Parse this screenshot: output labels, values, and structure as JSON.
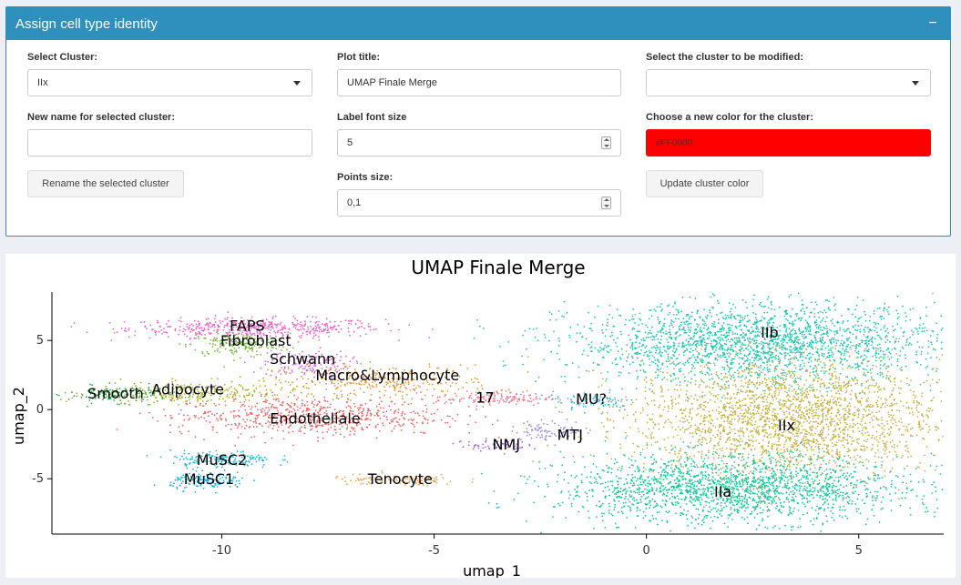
{
  "panel": {
    "title": "Assign cell type identity",
    "collapse_symbol": "−"
  },
  "form": {
    "select_cluster": {
      "label": "Select Cluster:",
      "value": "IIx"
    },
    "new_name": {
      "label": "New name for selected cluster:",
      "value": ""
    },
    "rename_button": "Rename the selected cluster",
    "plot_title": {
      "label": "Plot title:",
      "value": "UMAP Finale Merge"
    },
    "label_font_size": {
      "label": "Label font size",
      "value": "5"
    },
    "points_size": {
      "label": "Points size:",
      "value": "0,1"
    },
    "cluster_to_modify": {
      "label": "Select the cluster to be modified:",
      "value": ""
    },
    "new_color": {
      "label": "Choose a new color for the cluster:",
      "value": "#FF0000"
    },
    "update_color_button": "Update cluster color"
  },
  "chart_data": {
    "type": "scatter",
    "title": "UMAP Finale Merge",
    "xlabel": "umap_1",
    "ylabel": "umap_2",
    "xlim": [
      -14,
      7
    ],
    "ylim": [
      -9,
      8.5
    ],
    "xticks": [
      -10,
      -5,
      0,
      5
    ],
    "yticks": [
      -5,
      0,
      5
    ],
    "grid": false,
    "legend": "none",
    "clusters": [
      {
        "name": "FAPS",
        "label_x": -9.4,
        "label_y": 6.0,
        "cx": -9.2,
        "cy": 5.9,
        "sx": 1.5,
        "sy": 0.35,
        "n": 500,
        "color": "#f060c8"
      },
      {
        "name": "Fibroblast",
        "label_x": -9.2,
        "label_y": 4.9,
        "cx": -9.6,
        "cy": 4.7,
        "sx": 0.6,
        "sy": 0.4,
        "n": 180,
        "color": "#7ab83a"
      },
      {
        "name": "Schwann",
        "label_x": -8.1,
        "label_y": 3.6,
        "cx": -8.0,
        "cy": 3.3,
        "sx": 0.5,
        "sy": 0.5,
        "n": 150,
        "color": "#d064e0"
      },
      {
        "name": "Macro&Lymphocyte",
        "label_x": -6.1,
        "label_y": 2.4,
        "cx": -6.2,
        "cy": 2.0,
        "sx": 1.3,
        "sy": 0.6,
        "n": 300,
        "color": "#e8942a"
      },
      {
        "name": "Smooth",
        "label_x": -12.5,
        "label_y": 1.1,
        "cx": -12.4,
        "cy": 1.1,
        "sx": 0.6,
        "sy": 0.3,
        "n": 150,
        "color": "#28a84a"
      },
      {
        "name": "Adipocyte",
        "label_x": -10.8,
        "label_y": 1.4,
        "cx": -10.6,
        "cy": 1.2,
        "sx": 1.2,
        "sy": 0.4,
        "n": 250,
        "color": "#a8b020"
      },
      {
        "name": "17",
        "label_x": -3.8,
        "label_y": 0.8,
        "cx": -3.6,
        "cy": 0.8,
        "sx": 0.7,
        "sy": 0.25,
        "n": 150,
        "color": "#f07890"
      },
      {
        "name": "MU?",
        "label_x": -1.3,
        "label_y": 0.7,
        "cx": -1.2,
        "cy": 0.6,
        "sx": 0.5,
        "sy": 0.35,
        "n": 80,
        "color": "#28b8e0"
      },
      {
        "name": "Endotheliale",
        "label_x": -7.8,
        "label_y": -0.7,
        "cx": -8.0,
        "cy": -0.5,
        "sx": 1.6,
        "sy": 0.7,
        "n": 650,
        "color": "#f06262"
      },
      {
        "name": "MTJ",
        "label_x": -1.8,
        "label_y": -1.9,
        "cx": -2.2,
        "cy": -1.5,
        "sx": 0.5,
        "sy": 0.35,
        "n": 90,
        "color": "#9888e8"
      },
      {
        "name": "NMJ",
        "label_x": -3.3,
        "label_y": -2.6,
        "cx": -3.6,
        "cy": -2.6,
        "sx": 0.4,
        "sy": 0.2,
        "n": 60,
        "color": "#a860e0"
      },
      {
        "name": "MuSC2",
        "label_x": -10.0,
        "label_y": -3.7,
        "cx": -10.0,
        "cy": -3.6,
        "sx": 0.6,
        "sy": 0.3,
        "n": 160,
        "color": "#20b4d8"
      },
      {
        "name": "MuSC1",
        "label_x": -10.3,
        "label_y": -5.1,
        "cx": -10.3,
        "cy": -5.2,
        "sx": 0.45,
        "sy": 0.3,
        "n": 140,
        "color": "#10b0f0"
      },
      {
        "name": "Tenocyte",
        "label_x": -5.8,
        "label_y": -5.1,
        "cx": -5.9,
        "cy": -5.1,
        "sx": 0.8,
        "sy": 0.2,
        "n": 110,
        "color": "#f0a050"
      },
      {
        "name": "IIb",
        "label_x": 2.9,
        "label_y": 5.5,
        "cx": 2.7,
        "cy": 4.8,
        "sx": 2.2,
        "sy": 1.4,
        "n": 2200,
        "color": "#1cc8b0"
      },
      {
        "name": "IIx",
        "label_x": 3.3,
        "label_y": -1.2,
        "cx": 3.3,
        "cy": -0.6,
        "sx": 1.8,
        "sy": 2.1,
        "n": 2400,
        "color": "#c8b040"
      },
      {
        "name": "IIa",
        "label_x": 1.8,
        "label_y": -6.0,
        "cx": 2.0,
        "cy": -5.7,
        "sx": 2.0,
        "sy": 1.2,
        "n": 1900,
        "color": "#10c898"
      }
    ]
  }
}
